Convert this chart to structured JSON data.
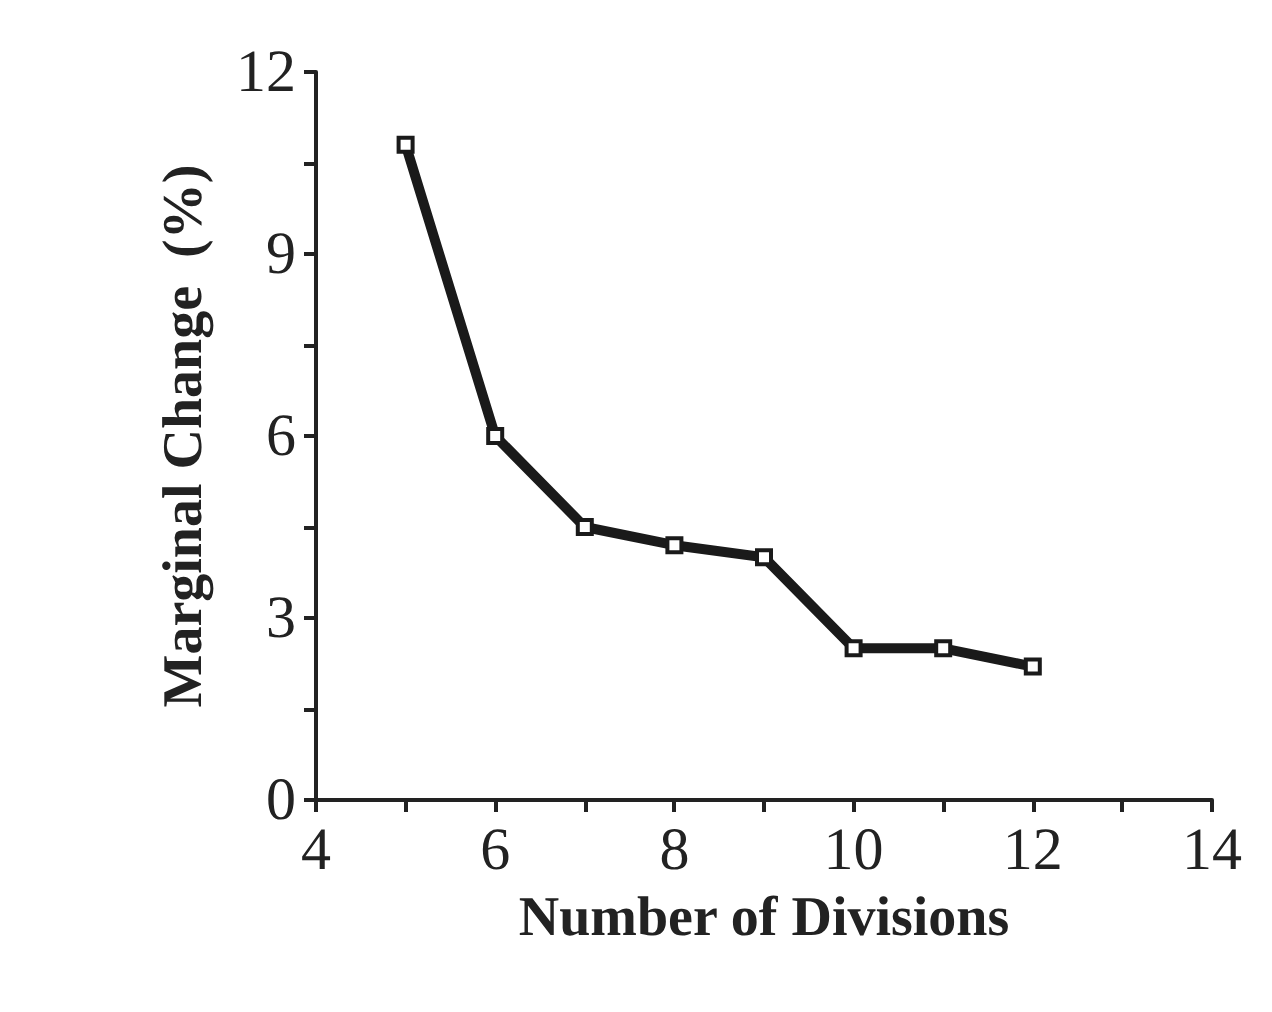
{
  "chart_data": {
    "type": "line",
    "xlabel": "Number of Divisions",
    "ylabel": "Marginal Change  (%)",
    "x": [
      5,
      6,
      7,
      8,
      9,
      10,
      11,
      12
    ],
    "series": [
      {
        "color": "#1a1a1a",
        "values": [
          10.8,
          6.0,
          4.5,
          4.2,
          4.0,
          2.5,
          2.5,
          2.2
        ]
      }
    ],
    "xlim": [
      4,
      14
    ],
    "xticks": [
      4,
      {
        "value": 5,
        "label": null
      },
      6,
      {
        "value": 7,
        "label": null
      },
      8,
      {
        "value": 9,
        "label": null
      },
      10,
      {
        "value": 11,
        "label": null
      },
      12,
      {
        "value": 13,
        "label": null
      },
      14
    ],
    "ylim": [
      0,
      12
    ],
    "yticks": [
      0,
      {
        "value": 1.5,
        "label": null
      },
      3,
      {
        "value": 4.5,
        "label": null
      },
      6,
      {
        "value": 7.5,
        "label": null
      },
      9,
      {
        "value": 10.5,
        "label": null
      },
      12
    ],
    "grid": false,
    "marker": "square",
    "line_style": "solid"
  }
}
